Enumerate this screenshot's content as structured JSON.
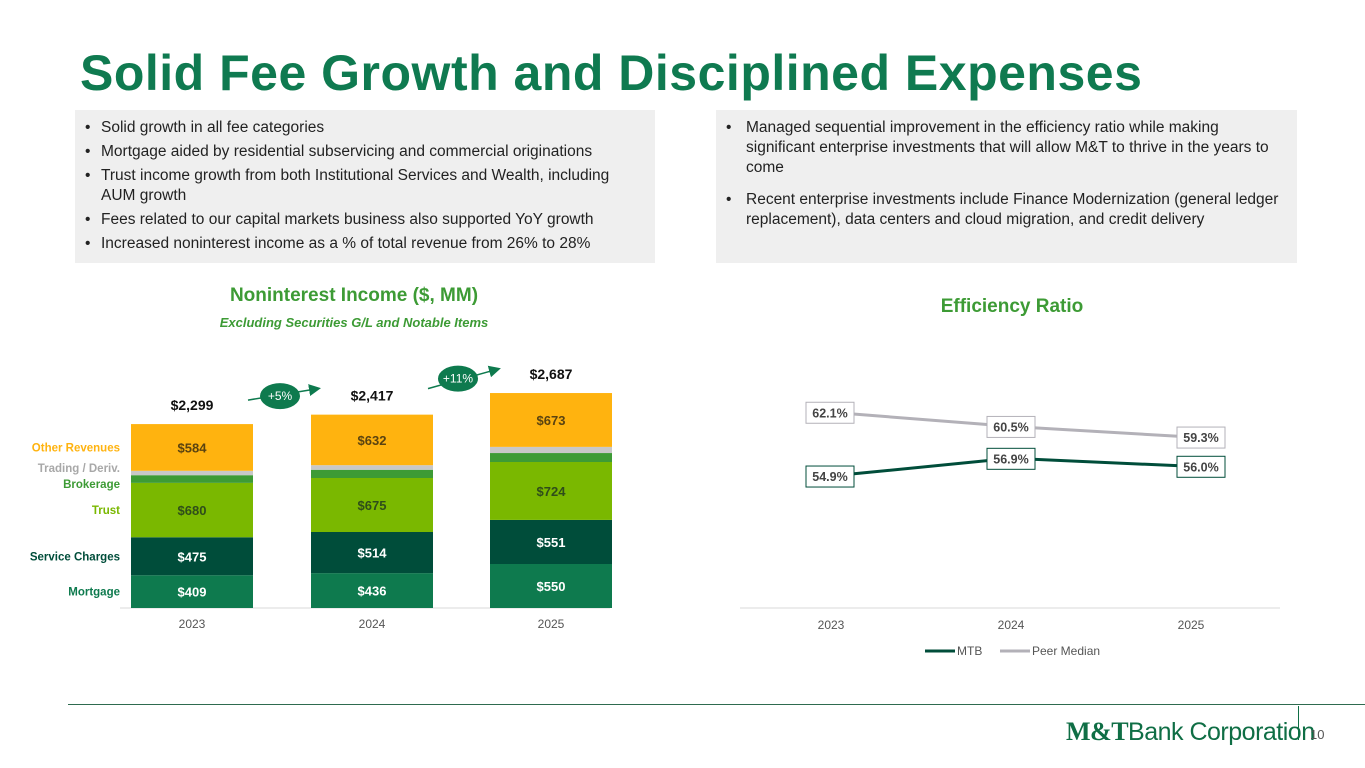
{
  "title": "Solid Fee Growth and Disciplined Expenses",
  "left_bullets": [
    "Solid growth in all fee categories",
    "Mortgage aided by residential subservicing and commercial originations",
    "Trust income growth from both Institutional Services and Wealth, including AUM growth",
    "Fees related to our capital markets business also supported YoY growth",
    "Increased noninterest income as a % of total revenue from 26% to 28%"
  ],
  "right_bullets": [
    "Managed sequential improvement in the efficiency ratio while making significant enterprise investments that will allow M&T to thrive in the years to come",
    "Recent enterprise investments include Finance Modernization (general ledger replacement), data centers and cloud migration, and credit delivery"
  ],
  "colors": {
    "brand": "#0f7a50",
    "mortgage": "#0e7a4e",
    "service_charges": "#004d3a",
    "trust": "#7ab800",
    "brokerage": "#3d9b35",
    "trading": "#c8c8c8",
    "other": "#ffb30f",
    "mtb_line": "#004d3a",
    "peer_line": "#b3b1b8"
  },
  "chart_data": [
    {
      "type": "bar",
      "stacked": true,
      "title": "Noninterest Income ($, MM)",
      "subtitle": "Excluding Securities G/L and Notable Items",
      "categories": [
        "2023",
        "2024",
        "2025"
      ],
      "series": [
        {
          "name": "Mortgage",
          "values": [
            409,
            436,
            550
          ],
          "labels": [
            "$409",
            "$436",
            "$550"
          ],
          "color_key": "mortgage"
        },
        {
          "name": "Service Charges",
          "values": [
            475,
            514,
            551
          ],
          "labels": [
            "$475",
            "$514",
            "$551"
          ],
          "color_key": "service_charges"
        },
        {
          "name": "Trust",
          "values": [
            680,
            675,
            724
          ],
          "labels": [
            "$680",
            "$675",
            "$724"
          ],
          "color_key": "trust"
        },
        {
          "name": "Brokerage",
          "values": [
            96,
            103,
            112
          ],
          "labels": null,
          "color_key": "brokerage"
        },
        {
          "name": "Trading / Deriv.",
          "values": [
            55,
            57,
            77
          ],
          "labels": null,
          "color_key": "trading"
        },
        {
          "name": "Other Revenues",
          "values": [
            584,
            632,
            673
          ],
          "labels": [
            "$584",
            "$632",
            "$673"
          ],
          "color_key": "other"
        }
      ],
      "totals": [
        "$2,299",
        "$2,417",
        "$2,687"
      ],
      "growth_annotations": [
        "+5%",
        "+11%"
      ],
      "ylim": [
        0,
        2900
      ]
    },
    {
      "type": "line",
      "title": "Efficiency Ratio",
      "categories": [
        "2023",
        "2024",
        "2025"
      ],
      "series": [
        {
          "name": "MTB",
          "values": [
            54.9,
            56.9,
            56.0
          ],
          "labels": [
            "54.9%",
            "56.9%",
            "56.0%"
          ],
          "color_key": "mtb_line"
        },
        {
          "name": "Peer Median",
          "values": [
            62.1,
            60.5,
            59.3
          ],
          "labels": [
            "62.1%",
            "60.5%",
            "59.3%"
          ],
          "color_key": "peer_line"
        }
      ],
      "ylim": [
        40,
        68
      ],
      "legend": "bottom-center"
    }
  ],
  "footer": {
    "logo_main": "M&T",
    "logo_rest": "Bank Corporation",
    "page_number": "10"
  }
}
